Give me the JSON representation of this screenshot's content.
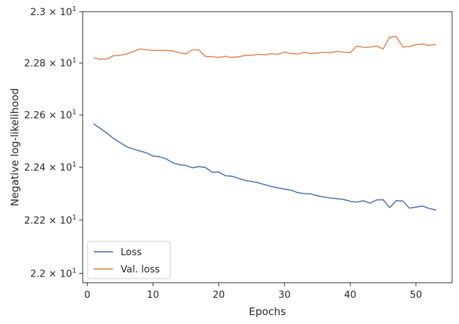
{
  "chart_data": {
    "type": "line",
    "title": "",
    "xlabel": "Epochs",
    "ylabel": "Negative log-likelihood",
    "y_scale": "log",
    "xlim": [
      -0.7,
      55.5
    ],
    "ylim": [
      21.965,
      23.0
    ],
    "grid": false,
    "legend_position": "lower-left",
    "x_ticks": [
      {
        "value": 0,
        "label": "0"
      },
      {
        "value": 10,
        "label": "10"
      },
      {
        "value": 20,
        "label": "20"
      },
      {
        "value": 30,
        "label": "30"
      },
      {
        "value": 40,
        "label": "40"
      },
      {
        "value": 50,
        "label": "50"
      }
    ],
    "y_ticks": [
      {
        "value": 22.0,
        "mantissa": "2.2",
        "exponent": "1"
      },
      {
        "value": 22.2,
        "mantissa": "2.22",
        "exponent": "1"
      },
      {
        "value": 22.4,
        "mantissa": "2.24",
        "exponent": "1"
      },
      {
        "value": 22.6,
        "mantissa": "2.26",
        "exponent": "1"
      },
      {
        "value": 22.8,
        "mantissa": "2.28",
        "exponent": "1"
      },
      {
        "value": 23.0,
        "mantissa": "2.3",
        "exponent": "1"
      }
    ],
    "x": [
      1,
      2,
      3,
      4,
      5,
      6,
      7,
      8,
      9,
      10,
      11,
      12,
      13,
      14,
      15,
      16,
      17,
      18,
      19,
      20,
      21,
      22,
      23,
      24,
      25,
      26,
      27,
      28,
      29,
      30,
      31,
      32,
      33,
      34,
      35,
      36,
      37,
      38,
      39,
      40,
      41,
      42,
      43,
      44,
      45,
      46,
      47,
      48,
      49,
      50,
      51,
      52,
      53
    ],
    "series": [
      {
        "name": "Loss",
        "color": "#4c72b0",
        "values": [
          22.565,
          22.548,
          22.53,
          22.51,
          22.494,
          22.478,
          22.47,
          22.462,
          22.455,
          22.443,
          22.44,
          22.432,
          22.417,
          22.41,
          22.407,
          22.398,
          22.403,
          22.399,
          22.381,
          22.382,
          22.368,
          22.366,
          22.358,
          22.35,
          22.346,
          22.341,
          22.334,
          22.327,
          22.322,
          22.317,
          22.313,
          22.304,
          22.3,
          22.299,
          22.292,
          22.287,
          22.283,
          22.281,
          22.278,
          22.271,
          22.268,
          22.273,
          22.264,
          22.276,
          22.277,
          22.247,
          22.273,
          22.272,
          22.245,
          22.249,
          22.253,
          22.244,
          22.238
        ]
      },
      {
        "name": "Val. loss",
        "color": "#dd8452",
        "values": [
          22.82,
          22.815,
          22.816,
          22.829,
          22.83,
          22.836,
          22.845,
          22.855,
          22.852,
          22.849,
          22.849,
          22.849,
          22.847,
          22.84,
          22.836,
          22.852,
          22.851,
          22.825,
          22.825,
          22.822,
          22.826,
          22.822,
          22.824,
          22.83,
          22.83,
          22.834,
          22.832,
          22.837,
          22.834,
          22.843,
          22.837,
          22.835,
          22.842,
          22.837,
          22.839,
          22.842,
          22.84,
          22.846,
          22.842,
          22.841,
          22.866,
          22.861,
          22.862,
          22.866,
          22.855,
          22.901,
          22.903,
          22.863,
          22.864,
          22.872,
          22.874,
          22.869,
          22.872
        ]
      }
    ]
  }
}
